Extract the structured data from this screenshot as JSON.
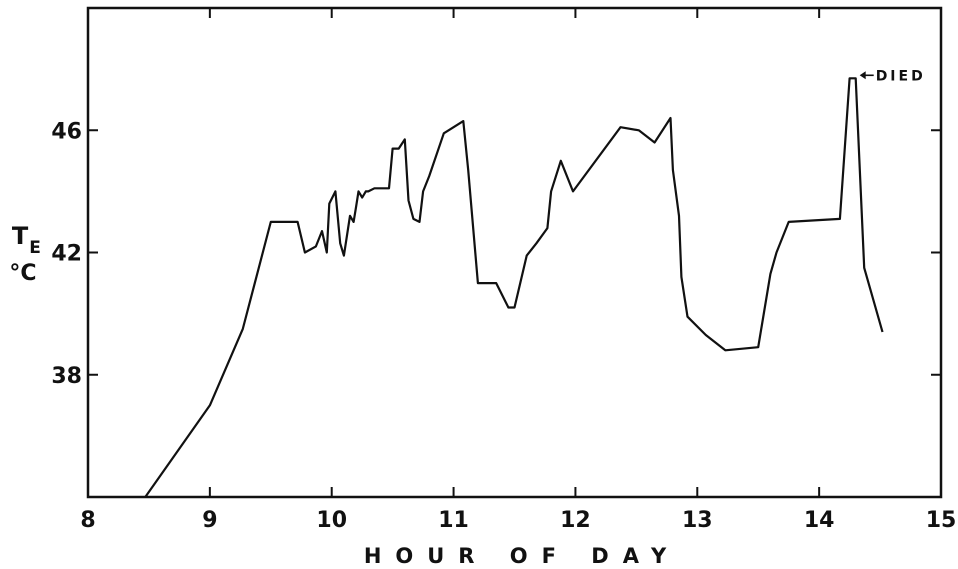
{
  "chart_data": {
    "type": "line",
    "title": "",
    "xlabel": "HOUR OF DAY",
    "ylabel_main": "T",
    "ylabel_sub": "E",
    "ylabel_unit": "°C",
    "xlim": [
      8,
      15
    ],
    "ylim": [
      34,
      50
    ],
    "xticks": [
      8,
      9,
      10,
      11,
      12,
      13,
      14,
      15
    ],
    "yticks": [
      38,
      42,
      46
    ],
    "grid": false,
    "annotation": {
      "text": "DIED",
      "x": 14.3,
      "y": 47.7
    },
    "series": [
      {
        "x": [
          8.47,
          9.0,
          9.27,
          9.5,
          9.72,
          9.78,
          9.87,
          9.92,
          9.96,
          9.98,
          10.03,
          10.07,
          10.1,
          10.15,
          10.18,
          10.2,
          10.22,
          10.25,
          10.28,
          10.3,
          10.35,
          10.47,
          10.5,
          10.55,
          10.6,
          10.63,
          10.67,
          10.72,
          10.75,
          10.8,
          10.92,
          11.08,
          11.12,
          11.2,
          11.35,
          11.45,
          11.5,
          11.6,
          11.68,
          11.77,
          11.8,
          11.88,
          11.98,
          12.37,
          12.52,
          12.65,
          12.78,
          12.8,
          12.85,
          12.87,
          12.92,
          13.07,
          13.23,
          13.5,
          13.6,
          13.65,
          13.75,
          14.17,
          14.25,
          14.3,
          14.37,
          14.52
        ],
        "y": [
          34.0,
          37.0,
          39.5,
          43.0,
          43.0,
          42.0,
          42.2,
          42.7,
          42.0,
          43.6,
          44.0,
          42.3,
          41.9,
          43.2,
          43.0,
          43.5,
          44.0,
          43.8,
          44.0,
          44.0,
          44.1,
          44.1,
          45.4,
          45.4,
          45.7,
          43.7,
          43.1,
          43.0,
          44.0,
          44.5,
          45.9,
          46.3,
          44.7,
          41.0,
          41.0,
          40.2,
          40.2,
          41.9,
          42.3,
          42.8,
          44.0,
          45.0,
          44.0,
          46.1,
          46.0,
          45.6,
          46.4,
          44.7,
          43.2,
          41.2,
          39.9,
          39.3,
          38.8,
          38.9,
          41.3,
          42.0,
          43.0,
          43.1,
          47.7,
          47.7,
          41.5,
          39.4
        ]
      }
    ]
  }
}
